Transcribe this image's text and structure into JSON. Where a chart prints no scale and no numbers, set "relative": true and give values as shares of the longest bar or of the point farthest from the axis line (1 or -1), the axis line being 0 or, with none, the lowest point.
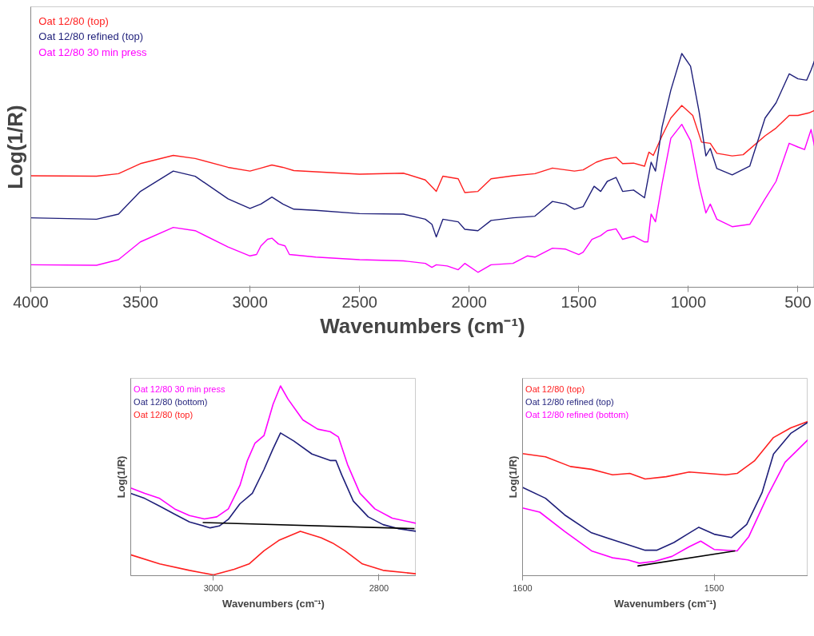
{
  "chart_data": [
    {
      "type": "line",
      "xlabel": "Wavenumbers (cm⁻¹)",
      "ylabel": "Log(1/R)",
      "relative": true,
      "xlim": [
        4000,
        425
      ],
      "xticks": [
        4000,
        3500,
        3000,
        2500,
        2000,
        1500,
        1000,
        500
      ],
      "tick_labels": "x",
      "legend": "top left",
      "grid": false,
      "series": [
        {
          "name": "Oat 12/80 (top)",
          "color": "#ff2020",
          "x": [
            4000,
            3700,
            3600,
            3500,
            3350,
            3250,
            3100,
            3000,
            2950,
            2900,
            2850,
            2800,
            2700,
            2500,
            2300,
            2200,
            2150,
            2120,
            2050,
            2020,
            1960,
            1900,
            1800,
            1700,
            1620,
            1520,
            1480,
            1420,
            1380,
            1330,
            1300,
            1250,
            1200,
            1180,
            1160,
            1120,
            1080,
            1030,
            980,
            940,
            900,
            870,
            800,
            750,
            650,
            600,
            540,
            500,
            450,
            425
          ],
          "values": [
            0.477,
            0.475,
            0.486,
            0.529,
            0.564,
            0.551,
            0.513,
            0.497,
            0.51,
            0.523,
            0.513,
            0.499,
            0.494,
            0.484,
            0.488,
            0.459,
            0.41,
            0.475,
            0.464,
            0.405,
            0.41,
            0.464,
            0.477,
            0.486,
            0.51,
            0.497,
            0.502,
            0.535,
            0.548,
            0.556,
            0.529,
            0.531,
            0.518,
            0.578,
            0.564,
            0.648,
            0.724,
            0.778,
            0.735,
            0.621,
            0.616,
            0.573,
            0.562,
            0.567,
            0.648,
            0.681,
            0.735,
            0.735,
            0.746,
            0.756
          ]
        },
        {
          "name": "Oat 12/80 refined (top)",
          "color": "#1f1f7a",
          "x": [
            4000,
            3700,
            3600,
            3500,
            3350,
            3250,
            3100,
            3000,
            2950,
            2900,
            2850,
            2800,
            2700,
            2500,
            2300,
            2200,
            2170,
            2150,
            2120,
            2050,
            2020,
            1960,
            1900,
            1800,
            1700,
            1620,
            1560,
            1520,
            1480,
            1430,
            1400,
            1370,
            1330,
            1300,
            1250,
            1200,
            1170,
            1150,
            1120,
            1080,
            1030,
            990,
            950,
            920,
            900,
            870,
            800,
            720,
            650,
            600,
            540,
            500,
            460,
            440,
            425
          ],
          "values": [
            0.297,
            0.291,
            0.313,
            0.41,
            0.497,
            0.475,
            0.378,
            0.337,
            0.356,
            0.386,
            0.356,
            0.334,
            0.329,
            0.315,
            0.313,
            0.291,
            0.269,
            0.215,
            0.291,
            0.28,
            0.248,
            0.242,
            0.286,
            0.297,
            0.304,
            0.367,
            0.356,
            0.334,
            0.345,
            0.432,
            0.41,
            0.453,
            0.47,
            0.41,
            0.416,
            0.383,
            0.535,
            0.497,
            0.686,
            0.843,
            1.0,
            0.946,
            0.746,
            0.562,
            0.594,
            0.508,
            0.481,
            0.518,
            0.724,
            0.789,
            0.913,
            0.892,
            0.886,
            0.93,
            0.968
          ]
        },
        {
          "name": "Oat 12/80 30 min press",
          "color": "#ff00ff",
          "x": [
            4000,
            3700,
            3600,
            3500,
            3350,
            3250,
            3100,
            3000,
            2970,
            2950,
            2920,
            2900,
            2870,
            2840,
            2820,
            2700,
            2500,
            2300,
            2200,
            2170,
            2150,
            2100,
            2050,
            2020,
            1960,
            1900,
            1800,
            1735,
            1700,
            1620,
            1560,
            1500,
            1480,
            1440,
            1400,
            1370,
            1330,
            1300,
            1250,
            1200,
            1185,
            1170,
            1150,
            1120,
            1080,
            1030,
            990,
            950,
            920,
            900,
            870,
            800,
            720,
            650,
            600,
            540,
            500,
            470,
            440,
            425
          ],
          "values": [
            0.096,
            0.094,
            0.118,
            0.194,
            0.256,
            0.242,
            0.172,
            0.134,
            0.14,
            0.177,
            0.205,
            0.21,
            0.185,
            0.177,
            0.14,
            0.129,
            0.118,
            0.113,
            0.102,
            0.085,
            0.096,
            0.091,
            0.075,
            0.102,
            0.064,
            0.096,
            0.102,
            0.134,
            0.129,
            0.167,
            0.163,
            0.14,
            0.15,
            0.205,
            0.221,
            0.242,
            0.25,
            0.205,
            0.218,
            0.194,
            0.194,
            0.313,
            0.28,
            0.443,
            0.637,
            0.697,
            0.627,
            0.432,
            0.318,
            0.356,
            0.291,
            0.259,
            0.269,
            0.378,
            0.453,
            0.616,
            0.6,
            0.589,
            0.675,
            0.605
          ]
        }
      ]
    },
    {
      "type": "line",
      "xlabel": "Wavenumbers (cm⁻¹)",
      "ylabel": "Log(1/R)",
      "relative": true,
      "xlim": [
        3100,
        2755
      ],
      "xticks": [
        3000,
        2800
      ],
      "tick_labels": "x",
      "legend": "top left",
      "grid": false,
      "series": [
        {
          "name": "Oat 12/80 30 min press",
          "color": "#ff00ff",
          "x": [
            3100,
            3083,
            3065,
            3047,
            3029,
            3011,
            2996,
            2982,
            2968,
            2959,
            2950,
            2939,
            2928,
            2919,
            2910,
            2892,
            2874,
            2859,
            2849,
            2838,
            2823,
            2805,
            2784,
            2755
          ],
          "values": [
            0.462,
            0.434,
            0.407,
            0.352,
            0.317,
            0.299,
            0.31,
            0.352,
            0.476,
            0.607,
            0.697,
            0.738,
            0.903,
            1.0,
            0.931,
            0.821,
            0.772,
            0.759,
            0.731,
            0.586,
            0.434,
            0.352,
            0.303,
            0.276
          ]
        },
        {
          "name": "Oat 12/80 (bottom)",
          "color": "#1f1f7a",
          "x": [
            3100,
            3083,
            3065,
            3047,
            3029,
            3004,
            2993,
            2982,
            2968,
            2953,
            2939,
            2928,
            2919,
            2903,
            2881,
            2859,
            2852,
            2845,
            2831,
            2813,
            2795,
            2777,
            2755
          ],
          "values": [
            0.434,
            0.407,
            0.366,
            0.324,
            0.283,
            0.252,
            0.262,
            0.297,
            0.379,
            0.434,
            0.559,
            0.669,
            0.752,
            0.71,
            0.641,
            0.607,
            0.607,
            0.531,
            0.393,
            0.31,
            0.269,
            0.248,
            0.234
          ]
        },
        {
          "name": "Oat 12/80 (top)",
          "color": "#ff2020",
          "x": [
            3100,
            3065,
            3029,
            3000,
            2975,
            2957,
            2939,
            2921,
            2895,
            2870,
            2856,
            2841,
            2820,
            2795,
            2755
          ],
          "values": [
            0.11,
            0.062,
            0.028,
            0.004,
            0.034,
            0.062,
            0.131,
            0.186,
            0.234,
            0.2,
            0.172,
            0.131,
            0.062,
            0.028,
            0.01
          ]
        },
        {
          "type": "line",
          "color": "#000000",
          "x": [
            3013,
            2757
          ],
          "values": [
            0.28,
            0.248
          ]
        }
      ]
    },
    {
      "type": "line",
      "xlabel": "Wavenumbers (cm⁻¹)",
      "ylabel": "Log(1/R)",
      "relative": true,
      "xlim": [
        1600,
        1451
      ],
      "xticks": [
        1600,
        1500
      ],
      "tick_labels": "x",
      "legend": "top left",
      "grid": false,
      "series": [
        {
          "name": "Oat 12/80 (top)",
          "color": "#ff2020",
          "x": [
            1600,
            1588,
            1575,
            1564,
            1553,
            1544,
            1536,
            1525,
            1513,
            1494,
            1488,
            1479,
            1469,
            1460,
            1451
          ],
          "values": [
            0.792,
            0.771,
            0.708,
            0.69,
            0.654,
            0.663,
            0.627,
            0.642,
            0.672,
            0.654,
            0.663,
            0.744,
            0.896,
            0.959,
            1.0
          ]
        },
        {
          "name": "Oat 12/80 refined (top)",
          "color": "#1f1f7a",
          "x": [
            1600,
            1588,
            1578,
            1564,
            1553,
            1544,
            1536,
            1530,
            1521,
            1514,
            1508,
            1500,
            1491,
            1483,
            1475,
            1469,
            1460,
            1451
          ],
          "values": [
            0.573,
            0.502,
            0.394,
            0.278,
            0.233,
            0.197,
            0.165,
            0.165,
            0.215,
            0.269,
            0.314,
            0.269,
            0.247,
            0.332,
            0.538,
            0.789,
            0.923,
            0.995
          ]
        },
        {
          "name": "Oat 12/80 refined (bottom)",
          "color": "#ff00ff",
          "x": [
            1600,
            1591,
            1578,
            1564,
            1553,
            1545,
            1539,
            1531,
            1522,
            1513,
            1507,
            1500,
            1488,
            1482,
            1472,
            1463,
            1451
          ],
          "values": [
            0.439,
            0.412,
            0.287,
            0.161,
            0.116,
            0.102,
            0.081,
            0.093,
            0.125,
            0.188,
            0.224,
            0.17,
            0.161,
            0.251,
            0.52,
            0.735,
            0.882
          ]
        },
        {
          "type": "line",
          "color": "#000000",
          "x": [
            1540,
            1489
          ],
          "values": [
            0.063,
            0.161
          ]
        }
      ]
    }
  ]
}
